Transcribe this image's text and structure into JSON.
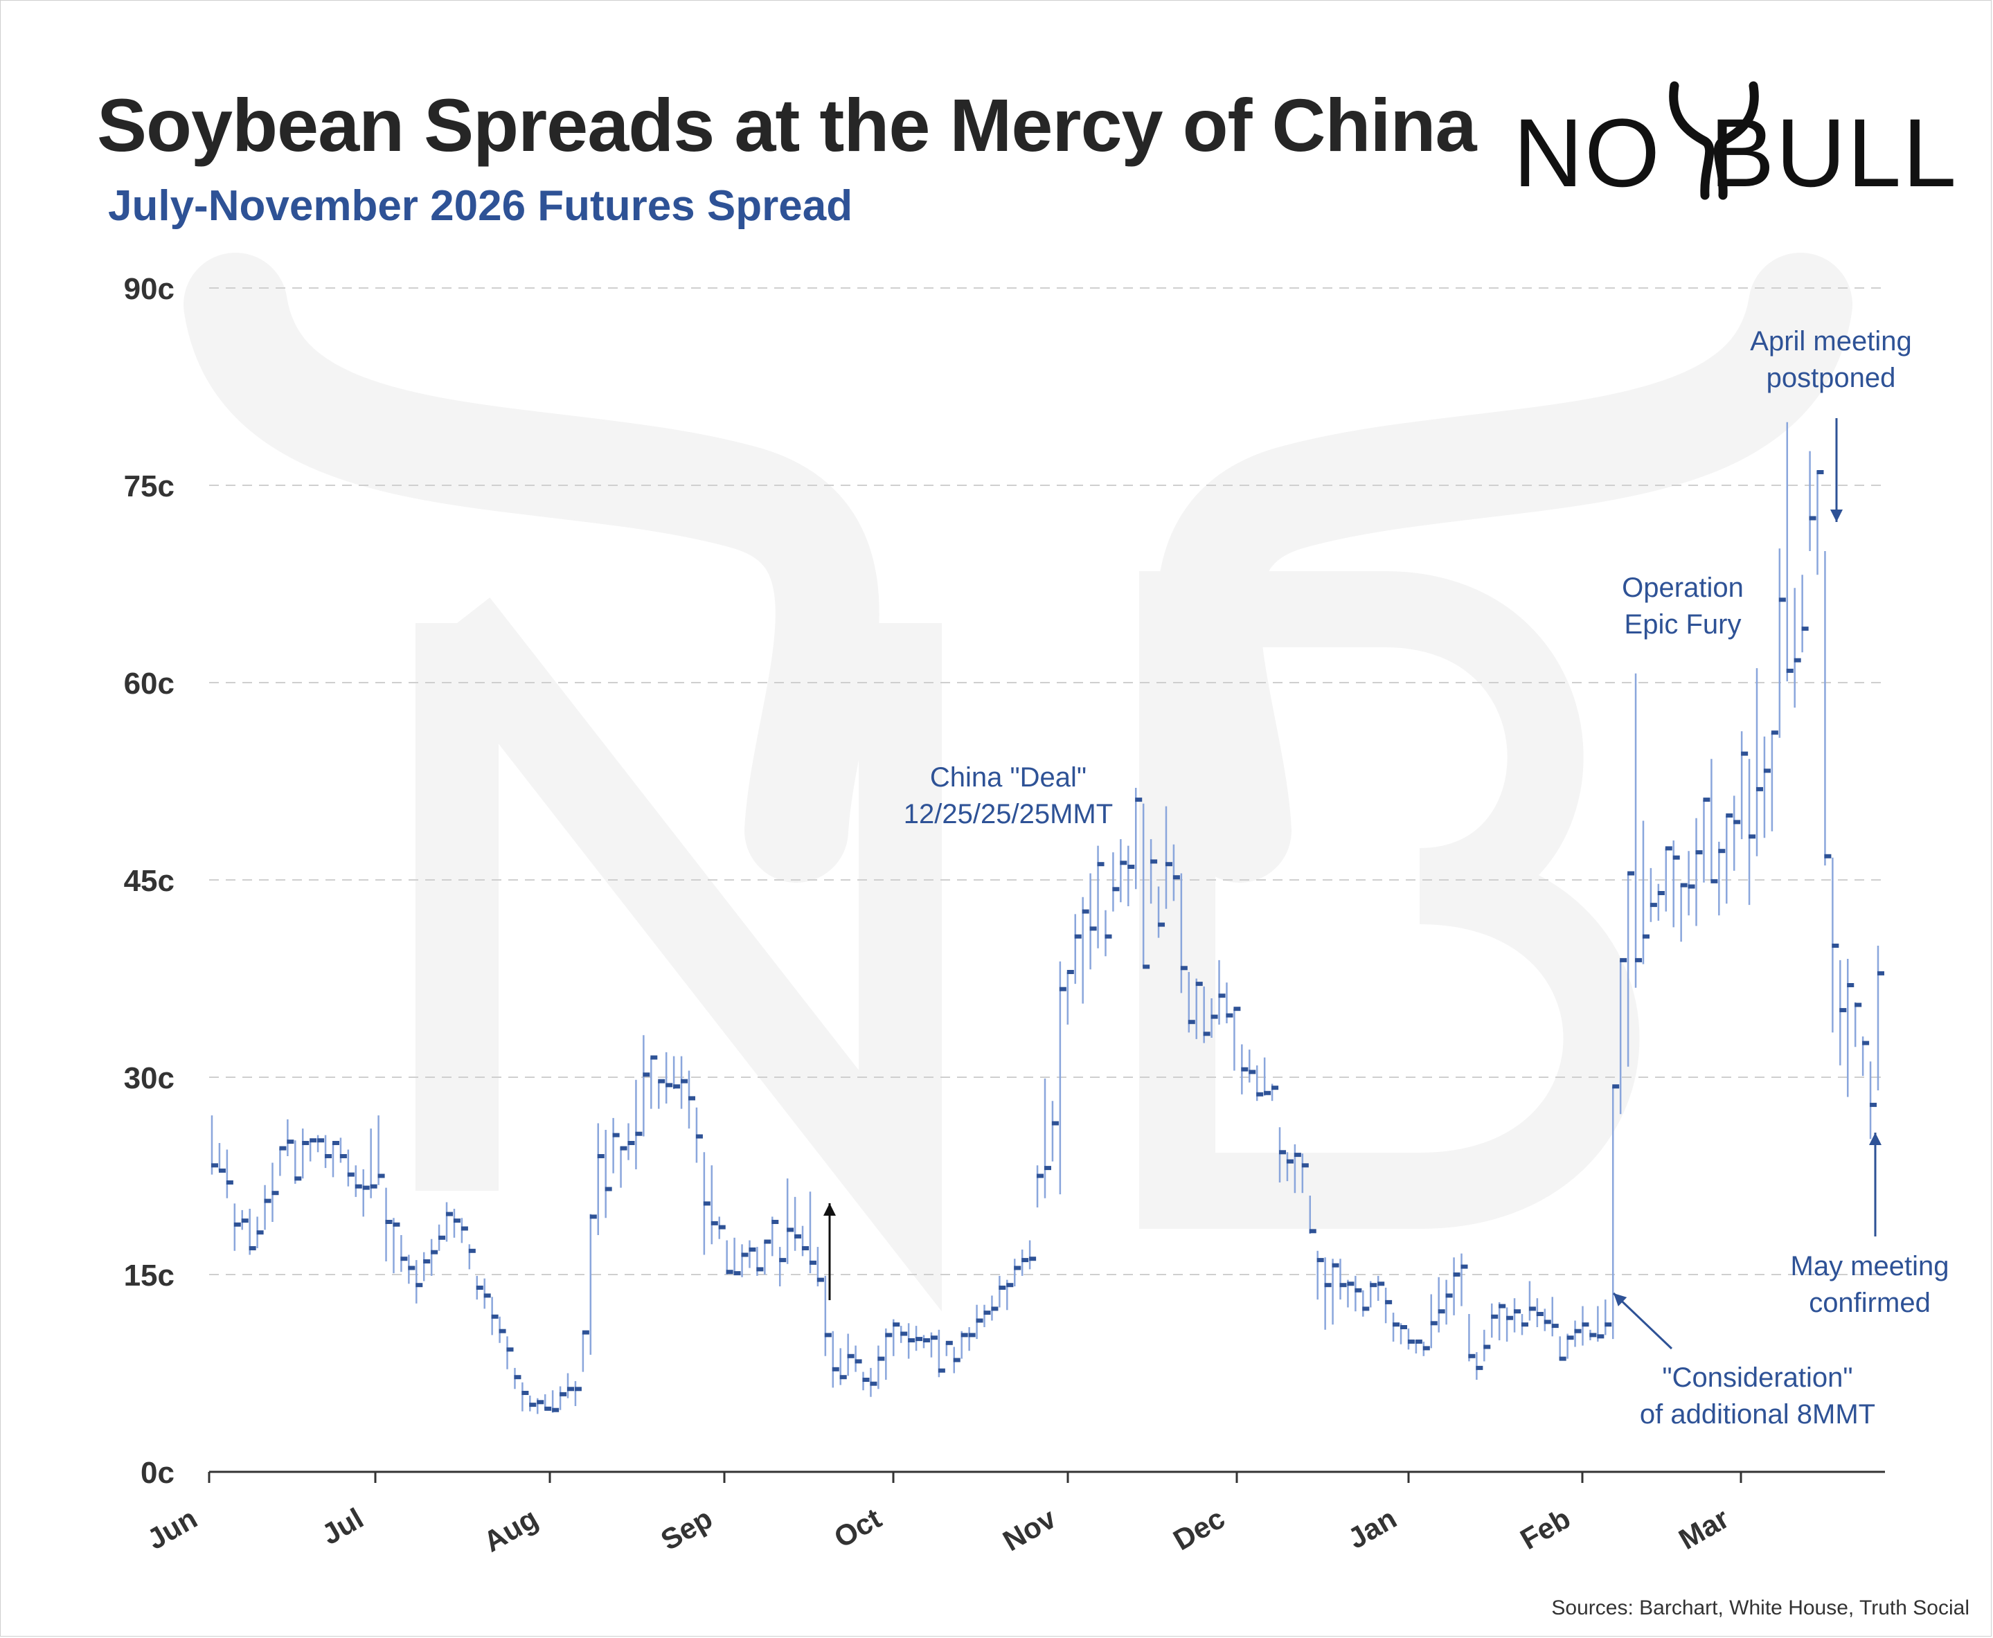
{
  "title": "Soybean Spreads at the Mercy of China",
  "subtitle": "July-November 2026 Futures Spread",
  "logo": {
    "left_text": "NO",
    "right_text": "BULL",
    "icon": "bull-horns-icon",
    "color": "#111111"
  },
  "source": "Sources: Barchart, White House, Truth Social",
  "colors": {
    "bar": "#2e5296",
    "wick": "#8aa6dc",
    "annotation": "#2e5296",
    "grid": "#cfcfcf",
    "axis": "#333333",
    "watermark": "#f4f4f4"
  },
  "chart_data": {
    "type": "bar",
    "subtype": "ohlc-range",
    "title": "Soybean Spreads at the Mercy of China",
    "subtitle": "July-November 2026 Futures Spread",
    "xlabel": "",
    "ylabel": "",
    "ylim": [
      0,
      90
    ],
    "yticks": [
      0,
      15,
      30,
      45,
      60,
      75,
      90
    ],
    "yticklabels": [
      "0c",
      "15c",
      "30c",
      "45c",
      "60c",
      "75c",
      "90c"
    ],
    "xticklabels": [
      "Jun",
      "Jul",
      "Aug",
      "Sep",
      "Oct",
      "Nov",
      "Dec",
      "Jan",
      "Feb",
      "Mar"
    ],
    "grid": "horizontal dashed",
    "series": [
      {
        "values": [
          [
            27.1,
            22.6,
            23.3
          ],
          [
            25.0,
            22.9,
            22.9
          ],
          [
            24.5,
            20.8,
            22.0
          ],
          [
            20.4,
            16.8,
            18.8
          ],
          [
            19.9,
            18.4,
            19.1
          ],
          [
            20.0,
            16.5,
            17.0
          ],
          [
            19.4,
            17.0,
            18.2
          ],
          [
            21.8,
            18.4,
            20.6
          ],
          [
            23.5,
            19.0,
            21.2
          ],
          [
            24.5,
            22.5,
            24.6
          ],
          [
            26.8,
            24.0,
            25.1
          ],
          [
            25.2,
            21.9,
            22.3
          ],
          [
            26.1,
            22.3,
            25.0
          ],
          [
            24.9,
            23.6,
            25.2
          ],
          [
            25.6,
            24.3,
            25.2
          ],
          [
            25.6,
            23.1,
            24.0
          ],
          [
            25.0,
            22.4,
            25.0
          ],
          [
            25.4,
            23.5,
            24.0
          ],
          [
            24.5,
            21.7,
            22.6
          ],
          [
            23.3,
            20.9,
            21.7
          ],
          [
            23.0,
            19.4,
            21.6
          ],
          [
            26.1,
            20.8,
            21.7
          ],
          [
            27.1,
            21.8,
            22.5
          ],
          [
            21.6,
            16.0,
            19.0
          ],
          [
            19.3,
            15.1,
            18.8
          ],
          [
            18.0,
            15.2,
            16.2
          ],
          [
            16.5,
            14.3,
            15.5
          ],
          [
            16.1,
            12.8,
            14.2
          ],
          [
            16.7,
            14.5,
            16.0
          ],
          [
            17.7,
            14.9,
            16.7
          ],
          [
            18.8,
            16.8,
            17.8
          ],
          [
            20.5,
            17.5,
            19.6
          ],
          [
            20.0,
            17.8,
            19.1
          ],
          [
            19.3,
            17.4,
            18.5
          ],
          [
            17.3,
            15.4,
            16.8
          ],
          [
            14.9,
            13.1,
            14.0
          ],
          [
            14.7,
            12.4,
            13.4
          ],
          [
            13.3,
            10.4,
            11.8
          ],
          [
            11.8,
            9.8,
            10.7
          ],
          [
            10.3,
            7.8,
            9.3
          ],
          [
            7.9,
            6.3,
            7.2
          ],
          [
            6.8,
            4.6,
            6.0
          ],
          [
            5.8,
            4.6,
            5.1
          ],
          [
            5.6,
            4.4,
            5.3
          ],
          [
            5.9,
            4.7,
            4.8
          ],
          [
            6.2,
            4.5,
            4.7
          ],
          [
            6.5,
            4.7,
            5.9
          ],
          [
            7.5,
            5.6,
            6.3
          ],
          [
            6.9,
            5.0,
            6.3
          ],
          [
            10.5,
            7.6,
            10.6
          ],
          [
            19.6,
            8.9,
            19.4
          ],
          [
            26.5,
            18.0,
            24.0
          ],
          [
            26.0,
            19.3,
            21.5
          ],
          [
            26.9,
            22.7,
            25.6
          ],
          [
            24.7,
            21.6,
            24.6
          ],
          [
            26.5,
            23.7,
            25.0
          ],
          [
            29.8,
            23.0,
            25.7
          ],
          [
            33.2,
            25.5,
            30.2
          ],
          [
            31.2,
            27.6,
            31.5
          ],
          [
            29.2,
            27.6,
            29.7
          ],
          [
            31.9,
            28.0,
            29.4
          ],
          [
            31.6,
            29.1,
            29.3
          ],
          [
            31.6,
            27.6,
            29.7
          ],
          [
            30.5,
            26.1,
            28.4
          ],
          [
            27.7,
            23.5,
            25.5
          ],
          [
            24.3,
            16.5,
            20.4
          ],
          [
            23.3,
            17.3,
            18.9
          ],
          [
            19.4,
            17.7,
            18.6
          ],
          [
            17.6,
            15.0,
            15.2
          ],
          [
            17.8,
            15.2,
            15.1
          ],
          [
            17.3,
            14.8,
            16.5
          ],
          [
            17.6,
            15.5,
            16.9
          ],
          [
            17.1,
            14.9,
            15.4
          ],
          [
            17.4,
            15.0,
            17.5
          ],
          [
            19.4,
            16.4,
            19.0
          ],
          [
            17.1,
            14.1,
            16.1
          ],
          [
            22.3,
            15.8,
            18.4
          ],
          [
            20.9,
            16.8,
            17.9
          ],
          [
            18.7,
            16.4,
            17.0
          ],
          [
            21.3,
            15.1,
            15.9
          ],
          [
            17.1,
            14.1,
            14.6
          ],
          [
            14.9,
            8.8,
            10.4
          ],
          [
            10.7,
            6.4,
            7.8
          ],
          [
            9.4,
            6.6,
            7.2
          ],
          [
            10.5,
            7.3,
            8.8
          ],
          [
            9.6,
            7.6,
            8.4
          ],
          [
            7.6,
            6.2,
            7.0
          ],
          [
            7.9,
            5.7,
            6.7
          ],
          [
            9.6,
            6.3,
            8.6
          ],
          [
            10.9,
            7.0,
            10.4
          ],
          [
            11.6,
            8.8,
            11.2
          ],
          [
            11.1,
            9.8,
            10.5
          ],
          [
            11.3,
            8.6,
            10.0
          ],
          [
            11.1,
            9.2,
            10.1
          ],
          [
            10.4,
            9.4,
            10.0
          ],
          [
            10.6,
            8.7,
            10.2
          ],
          [
            10.8,
            7.2,
            7.7
          ],
          [
            9.6,
            8.8,
            9.8
          ],
          [
            9.5,
            7.5,
            8.5
          ],
          [
            10.7,
            8.6,
            10.4
          ],
          [
            11.0,
            9.2,
            10.4
          ],
          [
            12.7,
            10.1,
            11.5
          ],
          [
            12.7,
            11.0,
            12.1
          ],
          [
            13.4,
            11.5,
            12.4
          ],
          [
            14.9,
            12.5,
            14.0
          ],
          [
            14.6,
            12.3,
            14.2
          ],
          [
            16.2,
            14.1,
            15.5
          ],
          [
            16.9,
            14.9,
            16.1
          ],
          [
            17.6,
            15.4,
            16.2
          ],
          [
            23.3,
            20.1,
            22.5
          ],
          [
            29.9,
            20.8,
            23.1
          ],
          [
            28.2,
            23.6,
            26.5
          ],
          [
            38.8,
            21.1,
            36.7
          ],
          [
            37.9,
            34.0,
            38.0
          ],
          [
            42.4,
            37.1,
            40.7
          ],
          [
            43.7,
            35.6,
            42.6
          ],
          [
            45.5,
            38.2,
            41.3
          ],
          [
            47.6,
            39.8,
            46.2
          ],
          [
            42.7,
            39.2,
            40.7
          ],
          [
            47.1,
            42.6,
            44.3
          ],
          [
            48.1,
            43.3,
            46.3
          ],
          [
            47.6,
            43.0,
            46.0
          ],
          [
            52.0,
            44.3,
            51.1
          ],
          [
            50.8,
            38.6,
            38.4
          ],
          [
            48.1,
            43.2,
            46.4
          ],
          [
            44.5,
            40.6,
            41.6
          ],
          [
            50.6,
            42.8,
            46.2
          ],
          [
            47.7,
            43.4,
            45.2
          ],
          [
            45.5,
            36.4,
            38.3
          ],
          [
            38.0,
            33.4,
            34.2
          ],
          [
            37.5,
            32.9,
            37.1
          ],
          [
            36.9,
            32.6,
            33.3
          ],
          [
            36.0,
            33.0,
            34.6
          ],
          [
            38.9,
            34.0,
            36.2
          ],
          [
            37.2,
            34.1,
            34.7
          ],
          [
            35.2,
            30.5,
            35.2
          ],
          [
            32.5,
            28.7,
            30.6
          ],
          [
            32.1,
            29.6,
            30.4
          ],
          [
            30.9,
            28.2,
            28.7
          ],
          [
            31.5,
            28.6,
            28.8
          ],
          [
            29.5,
            28.2,
            29.2
          ],
          [
            26.2,
            22.0,
            24.3
          ],
          [
            24.3,
            22.1,
            23.6
          ],
          [
            24.9,
            21.2,
            24.1
          ],
          [
            24.2,
            21.2,
            23.3
          ],
          [
            21.0,
            18.1,
            18.3
          ],
          [
            16.8,
            13.1,
            16.1
          ],
          [
            16.3,
            10.8,
            14.2
          ],
          [
            16.2,
            11.2,
            15.7
          ],
          [
            16.2,
            13.1,
            14.2
          ],
          [
            14.6,
            12.5,
            14.3
          ],
          [
            14.9,
            12.2,
            13.8
          ],
          [
            13.8,
            11.8,
            12.4
          ],
          [
            14.5,
            12.5,
            14.2
          ],
          [
            14.9,
            13.0,
            14.3
          ],
          [
            14.0,
            11.3,
            12.9
          ],
          [
            12.1,
            9.9,
            11.2
          ],
          [
            11.3,
            9.7,
            11.0
          ],
          [
            10.9,
            9.3,
            9.9
          ],
          [
            10.0,
            9.0,
            9.9
          ],
          [
            9.9,
            8.8,
            9.4
          ],
          [
            13.5,
            9.4,
            11.3
          ],
          [
            14.8,
            10.6,
            12.2
          ],
          [
            14.6,
            11.2,
            13.4
          ],
          [
            16.3,
            11.9,
            15.0
          ],
          [
            16.6,
            12.6,
            15.6
          ],
          [
            12.0,
            8.4,
            8.8
          ],
          [
            9.1,
            7.0,
            7.9
          ],
          [
            10.8,
            8.4,
            9.5
          ],
          [
            12.8,
            10.2,
            11.8
          ],
          [
            12.9,
            10.0,
            12.6
          ],
          [
            12.5,
            9.9,
            11.7
          ],
          [
            13.2,
            10.6,
            12.2
          ],
          [
            12.0,
            10.4,
            11.2
          ],
          [
            14.5,
            11.5,
            12.4
          ],
          [
            13.2,
            11.0,
            12.0
          ],
          [
            12.4,
            10.7,
            11.4
          ],
          [
            13.3,
            10.3,
            11.1
          ],
          [
            10.3,
            8.5,
            8.6
          ],
          [
            10.5,
            8.6,
            10.2
          ],
          [
            11.5,
            9.5,
            10.7
          ],
          [
            12.6,
            9.6,
            11.2
          ],
          [
            10.8,
            10.0,
            10.4
          ],
          [
            12.6,
            9.9,
            10.3
          ],
          [
            13.1,
            10.4,
            11.2
          ],
          [
            13.9,
            10.1,
            29.3
          ],
          [
            35.8,
            27.2,
            38.9
          ],
          [
            39.5,
            30.8,
            45.5
          ],
          [
            60.7,
            36.8,
            38.9
          ],
          [
            49.5,
            38.6,
            40.7
          ],
          [
            45.9,
            41.8,
            43.1
          ],
          [
            44.7,
            41.9,
            44.0
          ],
          [
            46.0,
            42.6,
            47.4
          ],
          [
            48.0,
            41.4,
            46.7
          ],
          [
            42.0,
            40.3,
            44.6
          ],
          [
            47.2,
            42.3,
            44.5
          ],
          [
            49.7,
            41.5,
            47.1
          ],
          [
            50.9,
            44.8,
            51.1
          ],
          [
            54.2,
            45.5,
            44.9
          ],
          [
            47.9,
            42.3,
            47.2
          ],
          [
            49.9,
            43.2,
            49.9
          ],
          [
            51.4,
            45.7,
            49.4
          ],
          [
            56.3,
            48.1,
            54.6
          ],
          [
            54.2,
            43.1,
            48.3
          ],
          [
            61.1,
            46.8,
            51.9
          ],
          [
            55.9,
            48.2,
            53.3
          ],
          [
            56.0,
            48.7,
            56.2
          ],
          [
            70.2,
            55.8,
            66.3
          ],
          [
            79.8,
            60.1,
            60.9
          ],
          [
            67.2,
            58.1,
            61.7
          ],
          [
            68.2,
            62.3,
            64.1
          ],
          [
            77.6,
            70.0,
            72.5
          ],
          [
            76.1,
            68.2,
            76.0
          ],
          [
            70.0,
            46.1,
            46.8
          ],
          [
            46.7,
            33.4,
            40.0
          ],
          [
            38.9,
            30.9,
            35.1
          ],
          [
            39.0,
            28.5,
            37.0
          ],
          [
            35.7,
            32.3,
            35.5
          ],
          [
            33.1,
            30.1,
            32.6
          ],
          [
            31.2,
            25.3,
            27.9
          ],
          [
            40.0,
            29.0,
            37.9
          ]
        ]
      }
    ],
    "annotations": [
      {
        "text_lines": [
          "China \"Deal\"",
          "12/25/25/25MMT"
        ]
      },
      {
        "text_lines": [
          "\"Consideration\"",
          "of additional 8MMT"
        ]
      },
      {
        "text_lines": [
          "Operation",
          "Epic Fury"
        ]
      },
      {
        "text_lines": [
          "April meeting",
          "postponed"
        ]
      },
      {
        "text_lines": [
          "May meeting",
          "confirmed"
        ]
      }
    ]
  }
}
